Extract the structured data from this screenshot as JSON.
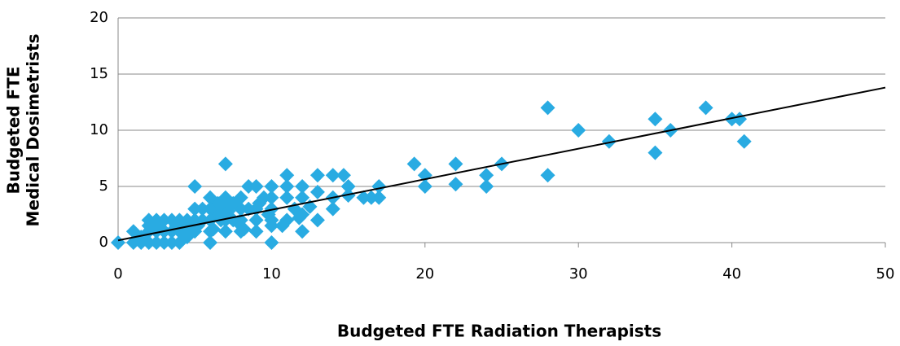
{
  "chart_data": {
    "type": "scatter",
    "xlabel": "Budgeted FTE Radiation Therapists",
    "ylabel": [
      "Budgeted FTE",
      "Medical Dosimetrists"
    ],
    "xlim": [
      0,
      50
    ],
    "xticks": [
      0,
      10,
      20,
      30,
      40,
      50
    ],
    "ylim": [
      0,
      20
    ],
    "yticks": [
      0,
      5,
      10,
      15,
      20
    ],
    "grid": true,
    "series": [
      {
        "color": "#29abe2",
        "x": [
          28,
          28,
          30,
          32,
          35,
          35,
          36,
          38.3,
          40,
          40.5,
          40.8,
          25,
          24,
          24,
          22,
          22,
          20,
          20,
          19.3,
          17,
          17,
          16.5,
          16,
          15,
          15,
          14.7,
          14,
          14,
          14,
          13,
          13,
          13,
          12,
          12,
          12,
          12,
          11.5,
          11,
          11,
          11,
          11,
          10.7,
          10,
          10,
          10,
          10,
          10,
          10,
          9.5,
          9,
          9,
          9,
          9,
          8.5,
          8.5,
          8,
          8,
          8,
          8,
          7.5,
          7.5,
          7,
          7,
          7,
          7,
          7,
          6.5,
          6.5,
          6,
          6,
          6,
          6,
          6,
          5.5,
          5.5,
          5,
          5,
          5,
          5,
          4.5,
          4.5,
          4,
          4,
          4,
          3.5,
          3.5,
          3.5,
          3,
          3,
          3,
          2.5,
          2.5,
          2.5,
          2,
          2,
          2,
          2,
          1.5,
          1.5,
          1,
          1,
          0,
          4.5,
          6.7,
          7.2,
          8.2,
          9.2,
          11.8,
          12.5,
          5.2,
          3.8,
          2.8,
          7.8,
          6.2,
          9.8
        ],
        "y": [
          12,
          6,
          10,
          9,
          11,
          8,
          10,
          12,
          11,
          11,
          9,
          7,
          6,
          5,
          7,
          5.2,
          6,
          5,
          7,
          5,
          4,
          4,
          4,
          5,
          4.2,
          6,
          6,
          4,
          3,
          6,
          4.5,
          2,
          5,
          4,
          1,
          2.5,
          3,
          6,
          5,
          4,
          2,
          1.5,
          5,
          4,
          3,
          2,
          1.5,
          0,
          4,
          5,
          3,
          2,
          1,
          5,
          3,
          4,
          3,
          2,
          1,
          3.5,
          2,
          7,
          4,
          3,
          2,
          1,
          3.5,
          2.5,
          4,
          3,
          2,
          1,
          0,
          3,
          2,
          5,
          3,
          2,
          1,
          2,
          1.5,
          2,
          1,
          0,
          2,
          1,
          0,
          2,
          1,
          0,
          2,
          1,
          0,
          2,
          1.5,
          1,
          0,
          0.5,
          0,
          1,
          0,
          0,
          0.5,
          2,
          2.8,
          1.2,
          3.5,
          2.2,
          3.2,
          1.5,
          1.5,
          1.3,
          1.8,
          1.2,
          2.5
        ]
      }
    ],
    "trendline": {
      "x": [
        0,
        50
      ],
      "y": [
        0.2,
        13.8
      ],
      "color": "#000000"
    }
  }
}
